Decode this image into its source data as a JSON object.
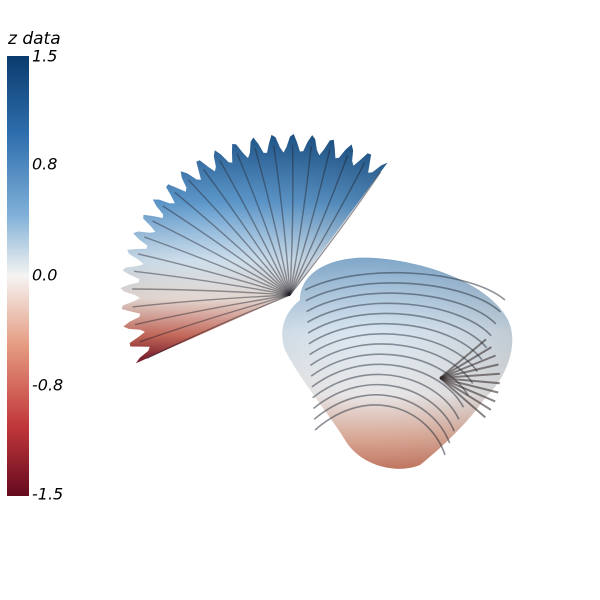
{
  "colorbar": {
    "title": "z data",
    "ticks": [
      "1.5",
      "0.8",
      "0.0",
      "-0.8",
      "-1.5"
    ],
    "colors": {
      "top": "#0b3b6e",
      "upper": "#2f6fae",
      "upper_mid": "#7fb0d8",
      "mid": "#f5f4f2",
      "lower_mid": "#e59a80",
      "lower": "#c2383a",
      "bottom": "#650a1f"
    }
  },
  "surface": {
    "name": "ruffled-seashell-surface",
    "colormap": "RdBu",
    "left_fan_petals": 22,
    "right_tube_ridges": 14
  }
}
